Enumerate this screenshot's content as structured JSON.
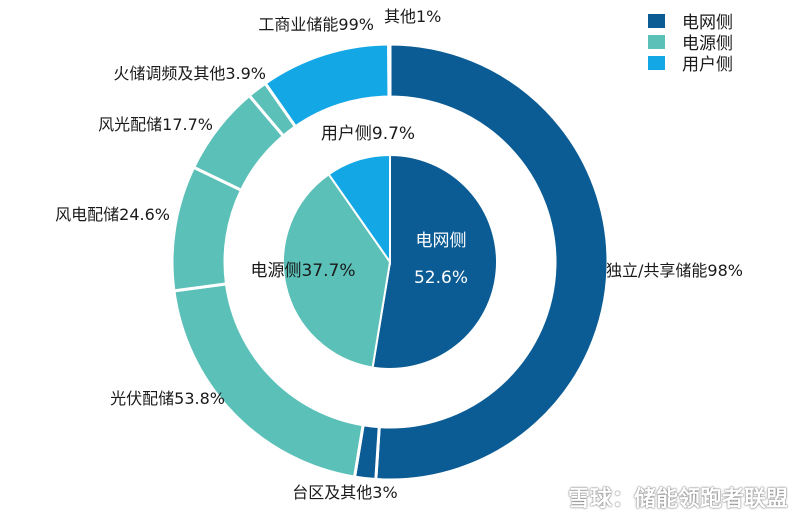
{
  "colors": {
    "grid": "#0b5c94",
    "source": "#5bc0b8",
    "user": "#14a7e6",
    "outline": "#ffffff",
    "text": "#1a1a1a",
    "inner_text": "#ffffff"
  },
  "legend": [
    {
      "label": "电网侧",
      "color": "#0b5c94"
    },
    {
      "label": "电源侧",
      "color": "#5bc0b8"
    },
    {
      "label": "用户侧",
      "color": "#14a7e6"
    }
  ],
  "watermark": {
    "text": "雪球：储能领跑者联盟",
    "icon": "snowball-logo-icon"
  },
  "chart_data": {
    "type": "donut",
    "inner": {
      "slices": [
        {
          "name": "电网侧",
          "value": 52.6,
          "label": "电网侧",
          "value_label": "52.6%",
          "color": "#0b5c94"
        },
        {
          "name": "电源侧",
          "value": 37.7,
          "label": "电源侧37.7%",
          "color": "#5bc0b8"
        },
        {
          "name": "用户侧",
          "value": 9.7,
          "label": "用户侧9.7%",
          "color": "#14a7e6"
        }
      ]
    },
    "outer": {
      "slices": [
        {
          "name": "独立/共享储能",
          "parent": "电网侧",
          "value": 98,
          "label": "独立/共享储能98%",
          "color": "#0b5c94"
        },
        {
          "name": "台区及其他",
          "parent": "电网侧",
          "value": 3,
          "label": "台区及其他3%",
          "color": "#0b5c94"
        },
        {
          "name": "光伏配储",
          "parent": "电源侧",
          "value": 53.8,
          "label": "光伏配储53.8%",
          "color": "#5bc0b8"
        },
        {
          "name": "风电配储",
          "parent": "电源侧",
          "value": 24.6,
          "label": "风电配储24.6%",
          "color": "#5bc0b8"
        },
        {
          "name": "风光配储",
          "parent": "电源侧",
          "value": 17.7,
          "label": "风光配储17.7%",
          "color": "#5bc0b8"
        },
        {
          "name": "火储调频及其他",
          "parent": "电源侧",
          "value": 3.9,
          "label": "火储调频及其他3.9%",
          "color": "#5bc0b8"
        },
        {
          "name": "工商业储能",
          "parent": "用户侧",
          "value": 99,
          "label": "工商业储能99%",
          "color": "#14a7e6"
        },
        {
          "name": "其他",
          "parent": "用户侧",
          "value": 1,
          "label": "其他1%",
          "color": "#14a7e6"
        }
      ]
    }
  }
}
